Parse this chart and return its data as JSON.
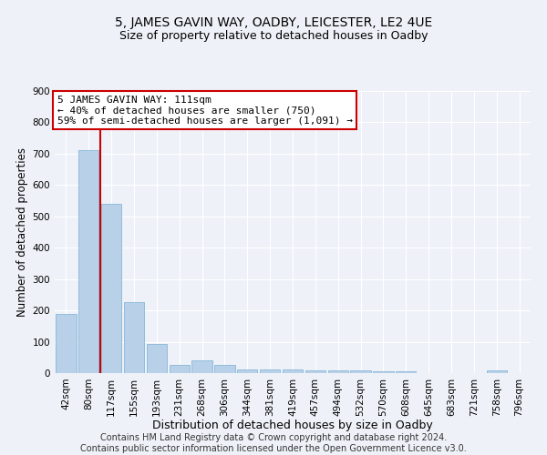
{
  "title1": "5, JAMES GAVIN WAY, OADBY, LEICESTER, LE2 4UE",
  "title2": "Size of property relative to detached houses in Oadby",
  "xlabel": "Distribution of detached houses by size in Oadby",
  "ylabel": "Number of detached properties",
  "categories": [
    "42sqm",
    "80sqm",
    "117sqm",
    "155sqm",
    "193sqm",
    "231sqm",
    "268sqm",
    "306sqm",
    "344sqm",
    "381sqm",
    "419sqm",
    "457sqm",
    "494sqm",
    "532sqm",
    "570sqm",
    "608sqm",
    "645sqm",
    "683sqm",
    "721sqm",
    "758sqm",
    "796sqm"
  ],
  "values": [
    188,
    710,
    540,
    226,
    92,
    27,
    40,
    27,
    13,
    11,
    13,
    10,
    9,
    8,
    7,
    5,
    0,
    0,
    0,
    8,
    0
  ],
  "bar_color": "#b8d0e8",
  "bar_edge_color": "#7aafd4",
  "vline_color": "#cc0000",
  "vline_x_index": 1.5,
  "annotation_text": "5 JAMES GAVIN WAY: 111sqm\n← 40% of detached houses are smaller (750)\n59% of semi-detached houses are larger (1,091) →",
  "annotation_box_color": "#ffffff",
  "annotation_box_edge": "#cc0000",
  "ylim": [
    0,
    900
  ],
  "yticks": [
    0,
    100,
    200,
    300,
    400,
    500,
    600,
    700,
    800,
    900
  ],
  "footer": "Contains HM Land Registry data © Crown copyright and database right 2024.\nContains public sector information licensed under the Open Government Licence v3.0.",
  "background_color": "#eef2f8",
  "grid_color": "#ffffff",
  "title1_fontsize": 10,
  "title2_fontsize": 9,
  "xlabel_fontsize": 9,
  "ylabel_fontsize": 8.5,
  "tick_fontsize": 7.5,
  "annotation_fontsize": 8,
  "footer_fontsize": 7
}
